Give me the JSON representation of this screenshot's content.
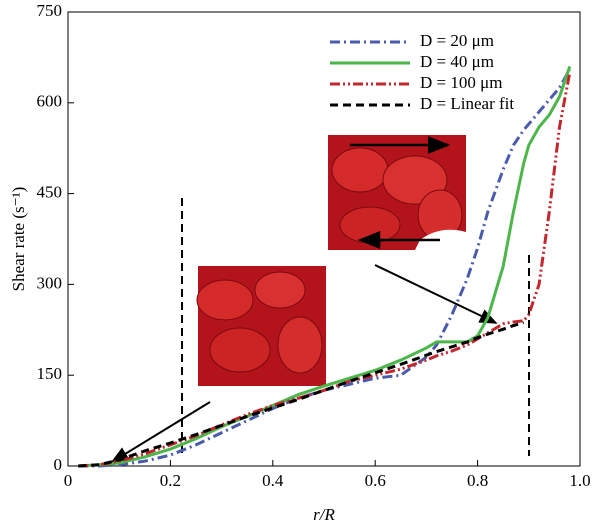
{
  "chart_data": {
    "type": "line",
    "xlabel": "r/R",
    "ylabel": "Shear rate (s⁻¹)",
    "x": [
      0.02,
      0.06,
      0.1,
      0.15,
      0.2,
      0.25,
      0.3,
      0.35,
      0.4,
      0.45,
      0.5,
      0.55,
      0.6,
      0.65,
      0.7,
      0.72,
      0.75,
      0.78,
      0.8,
      0.82,
      0.85,
      0.87,
      0.89,
      0.9,
      0.92,
      0.94,
      0.96,
      0.98
    ],
    "series": [
      {
        "name": "D = 20 μm",
        "color": "#4a5bab",
        "dash": "10,4,2,4",
        "values": [
          0,
          0,
          2,
          8,
          18,
          35,
          55,
          75,
          95,
          112,
          125,
          135,
          145,
          150,
          180,
          200,
          250,
          310,
          360,
          420,
          490,
          530,
          555,
          565,
          585,
          605,
          625,
          655
        ]
      },
      {
        "name": "D = 40 μm",
        "color": "#4cb64a",
        "dash": "none",
        "values": [
          0,
          2,
          5,
          15,
          28,
          45,
          65,
          82,
          100,
          118,
          132,
          145,
          158,
          175,
          195,
          205,
          205,
          205,
          215,
          245,
          330,
          420,
          500,
          530,
          560,
          580,
          610,
          660
        ]
      },
      {
        "name": "D = 100 μm",
        "color": "#c1272d",
        "dash": "10,3,2,3,2,3",
        "values": [
          0,
          2,
          8,
          20,
          35,
          50,
          68,
          85,
          100,
          112,
          125,
          140,
          150,
          160,
          175,
          182,
          190,
          200,
          210,
          220,
          235,
          238,
          240,
          250,
          300,
          420,
          560,
          650
        ]
      },
      {
        "name": "D = Linear fit",
        "color": "#000000",
        "dash": "8,5",
        "values": [
          0,
          2,
          10,
          25,
          38,
          52,
          67,
          82,
          96,
          110,
          125,
          140,
          154,
          168,
          183,
          189,
          197,
          205,
          212,
          218,
          226,
          232,
          237,
          null,
          null,
          null,
          null,
          null
        ]
      }
    ],
    "xlim": [
      0,
      1
    ],
    "ylim": [
      0,
      750
    ],
    "xticks": [
      0,
      0.2,
      0.4,
      0.6,
      0.8,
      {
        "value": 1,
        "label": "1.0"
      }
    ],
    "yticks": [
      0,
      150,
      300,
      450,
      600,
      750
    ]
  }
}
